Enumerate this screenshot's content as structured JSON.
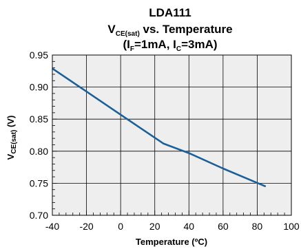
{
  "chart_data": {
    "type": "line",
    "title": {
      "line1": "LDA111",
      "line2_main": "V",
      "line2_sub": "CE(sat)",
      "line2_rest": " vs. Temperature",
      "line3_open": "(I",
      "line3_sub1": "F",
      "line3_mid": "=1mA, I",
      "line3_sub2": "C",
      "line3_close": "=3mA)"
    },
    "xlabel": "Temperature (ºC)",
    "ylabel": {
      "main": "V",
      "sub": "CE(sat)",
      "rest": " (V)"
    },
    "xlim": [
      -40,
      100
    ],
    "ylim": [
      0.7,
      0.95
    ],
    "xticks": [
      "-40",
      "-20",
      "0",
      "20",
      "40",
      "60",
      "80",
      "100"
    ],
    "xtick_values": [
      -40,
      -20,
      0,
      20,
      40,
      60,
      80,
      100
    ],
    "yticks": [
      "0.70",
      "0.75",
      "0.80",
      "0.85",
      "0.90",
      "0.95"
    ],
    "ytick_values": [
      0.7,
      0.75,
      0.8,
      0.85,
      0.9,
      0.95
    ],
    "grid": true,
    "series": [
      {
        "x": [
          -40,
          -20,
          0,
          25,
          40,
          60,
          85
        ],
        "y": [
          0.929,
          0.893,
          0.857,
          0.812,
          0.797,
          0.773,
          0.745
        ]
      }
    ],
    "colors": {
      "line": "#1a5f99",
      "plot_bg": "#eeeeee",
      "grid": "#000000"
    }
  }
}
